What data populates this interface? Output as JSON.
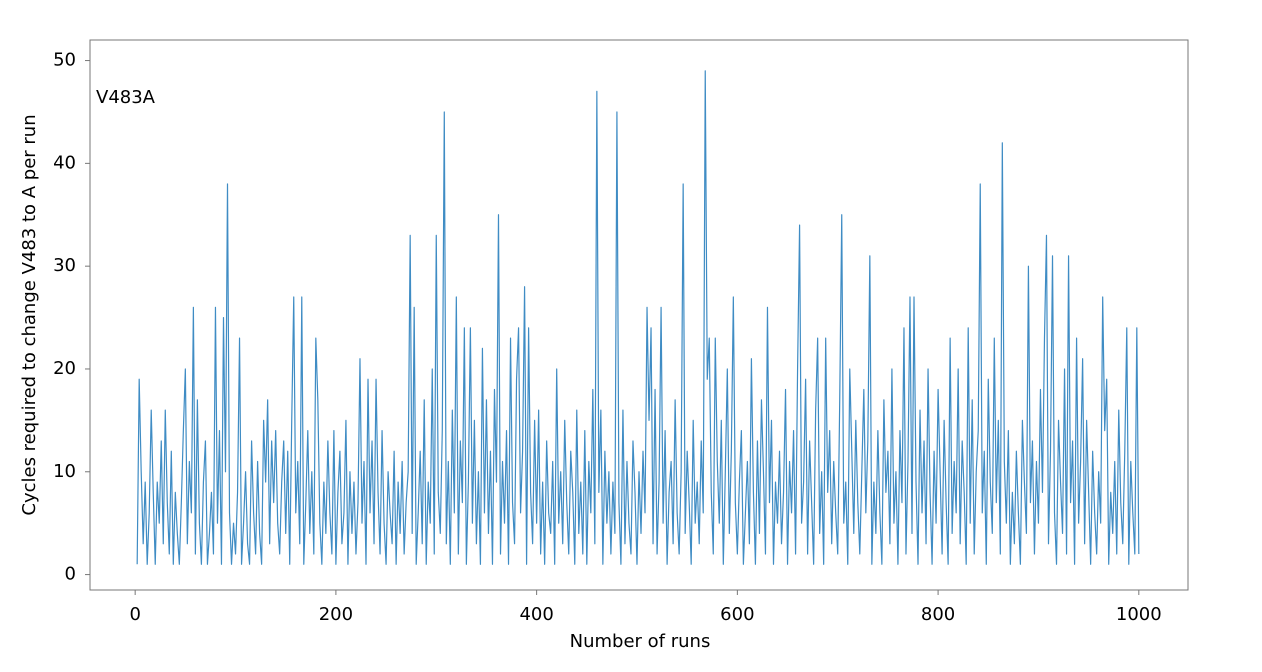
{
  "chart_data": {
    "type": "line",
    "annotation": "V483A",
    "xlabel": "Number of runs",
    "ylabel": "Cycles required to change V483 to A per run",
    "xlim": [
      -45,
      1049
    ],
    "ylim": [
      -1.5,
      52
    ],
    "xticks": [
      0,
      200,
      400,
      600,
      800,
      1000
    ],
    "yticks": [
      0,
      10,
      20,
      30,
      40,
      50
    ],
    "series": [
      {
        "name": "V483A",
        "color": "#3f8cc4",
        "x": [
          2,
          4,
          6,
          8,
          10,
          12,
          14,
          16,
          18,
          20,
          22,
          24,
          26,
          28,
          30,
          32,
          34,
          36,
          38,
          40,
          42,
          44,
          46,
          48,
          50,
          52,
          54,
          56,
          58,
          60,
          62,
          64,
          66,
          68,
          70,
          72,
          74,
          76,
          78,
          80,
          82,
          84,
          86,
          88,
          90,
          92,
          94,
          96,
          98,
          100,
          102,
          104,
          106,
          108,
          110,
          112,
          114,
          116,
          118,
          120,
          122,
          124,
          126,
          128,
          130,
          132,
          134,
          136,
          138,
          140,
          142,
          144,
          146,
          148,
          150,
          152,
          154,
          156,
          158,
          160,
          162,
          164,
          166,
          168,
          170,
          172,
          174,
          176,
          178,
          180,
          182,
          184,
          186,
          188,
          190,
          192,
          194,
          196,
          198,
          200,
          202,
          204,
          206,
          208,
          210,
          212,
          214,
          216,
          218,
          220,
          222,
          224,
          226,
          228,
          230,
          232,
          234,
          236,
          238,
          240,
          242,
          244,
          246,
          248,
          250,
          252,
          254,
          256,
          258,
          260,
          262,
          264,
          266,
          268,
          270,
          272,
          274,
          276,
          278,
          280,
          282,
          284,
          286,
          288,
          290,
          292,
          294,
          296,
          298,
          300,
          302,
          304,
          306,
          308,
          310,
          312,
          314,
          316,
          318,
          320,
          322,
          324,
          326,
          328,
          330,
          332,
          334,
          336,
          338,
          340,
          342,
          344,
          346,
          348,
          350,
          352,
          354,
          356,
          358,
          360,
          362,
          364,
          366,
          368,
          370,
          372,
          374,
          376,
          378,
          380,
          382,
          384,
          386,
          388,
          390,
          392,
          394,
          396,
          398,
          400,
          402,
          404,
          406,
          408,
          410,
          412,
          414,
          416,
          418,
          420,
          422,
          424,
          426,
          428,
          430,
          432,
          434,
          436,
          438,
          440,
          442,
          444,
          446,
          448,
          450,
          452,
          454,
          456,
          458,
          460,
          462,
          464,
          466,
          468,
          470,
          472,
          474,
          476,
          478,
          480,
          482,
          484,
          486,
          488,
          490,
          492,
          494,
          496,
          498,
          500,
          502,
          504,
          506,
          508,
          510,
          512,
          514,
          516,
          518,
          520,
          522,
          524,
          526,
          528,
          530,
          532,
          534,
          536,
          538,
          540,
          542,
          544,
          546,
          548,
          550,
          552,
          554,
          556,
          558,
          560,
          562,
          564,
          566,
          568,
          570,
          572,
          574,
          576,
          578,
          580,
          582,
          584,
          586,
          588,
          590,
          592,
          594,
          596,
          598,
          600,
          602,
          604,
          606,
          608,
          610,
          612,
          614,
          616,
          618,
          620,
          622,
          624,
          626,
          628,
          630,
          632,
          634,
          636,
          638,
          640,
          642,
          644,
          646,
          648,
          650,
          652,
          654,
          656,
          658,
          660,
          662,
          664,
          666,
          668,
          670,
          672,
          674,
          676,
          678,
          680,
          682,
          684,
          686,
          688,
          690,
          692,
          694,
          696,
          698,
          700,
          702,
          704,
          706,
          708,
          710,
          712,
          714,
          716,
          718,
          720,
          722,
          724,
          726,
          728,
          730,
          732,
          734,
          736,
          738,
          740,
          742,
          744,
          746,
          748,
          750,
          752,
          754,
          756,
          758,
          760,
          762,
          764,
          766,
          768,
          770,
          772,
          774,
          776,
          778,
          780,
          782,
          784,
          786,
          788,
          790,
          792,
          794,
          796,
          798,
          800,
          802,
          804,
          806,
          808,
          810,
          812,
          814,
          816,
          818,
          820,
          822,
          824,
          826,
          828,
          830,
          832,
          834,
          836,
          838,
          840,
          842,
          844,
          846,
          848,
          850,
          852,
          854,
          856,
          858,
          860,
          862,
          864,
          866,
          868,
          870,
          872,
          874,
          876,
          878,
          880,
          882,
          884,
          886,
          888,
          890,
          892,
          894,
          896,
          898,
          900,
          902,
          904,
          906,
          908,
          910,
          912,
          914,
          916,
          918,
          920,
          922,
          924,
          926,
          928,
          930,
          932,
          934,
          936,
          938,
          940,
          942,
          944,
          946,
          948,
          950,
          952,
          954,
          956,
          958,
          960,
          962,
          964,
          966,
          968,
          970,
          972,
          974,
          976,
          978,
          980,
          982,
          984,
          986,
          988,
          990,
          992,
          994,
          996,
          998,
          1000
        ],
        "values": [
          1,
          19,
          10,
          3,
          9,
          1,
          6,
          16,
          8,
          1,
          9,
          5,
          13,
          3,
          16,
          7,
          2,
          12,
          1,
          8,
          4,
          1,
          7,
          14,
          20,
          3,
          11,
          6,
          26,
          2,
          17,
          5,
          1,
          9,
          13,
          1,
          4,
          8,
          2,
          26,
          5,
          14,
          1,
          25,
          10,
          38,
          6,
          1,
          5,
          2,
          8,
          23,
          1,
          5,
          10,
          3,
          1,
          13,
          6,
          2,
          11,
          4,
          1,
          15,
          9,
          17,
          3,
          13,
          7,
          14,
          5,
          2,
          9,
          13,
          4,
          12,
          1,
          15,
          27,
          6,
          11,
          3,
          27,
          1,
          7,
          14,
          4,
          10,
          2,
          23,
          17,
          5,
          1,
          9,
          4,
          13,
          6,
          2,
          14,
          1,
          8,
          12,
          3,
          6,
          15,
          1,
          10,
          4,
          9,
          2,
          7,
          21,
          5,
          11,
          1,
          19,
          6,
          13,
          3,
          19,
          8,
          2,
          14,
          5,
          1,
          10,
          6,
          3,
          12,
          1,
          9,
          4,
          11,
          2,
          7,
          10,
          33,
          4,
          26,
          1,
          6,
          12,
          3,
          17,
          1,
          9,
          5,
          20,
          2,
          33,
          8,
          4,
          14,
          45,
          3,
          11,
          1,
          16,
          6,
          27,
          2,
          13,
          7,
          24,
          1,
          9,
          24,
          5,
          15,
          3,
          10,
          1,
          22,
          6,
          17,
          4,
          12,
          1,
          18,
          9,
          35,
          2,
          11,
          5,
          14,
          1,
          23,
          7,
          3,
          19,
          24,
          6,
          12,
          28,
          1,
          24,
          8,
          3,
          15,
          5,
          16,
          2,
          9,
          1,
          13,
          6,
          4,
          11,
          1,
          20,
          5,
          10,
          3,
          15,
          7,
          2,
          12,
          8,
          1,
          16,
          4,
          9,
          2,
          14,
          1,
          11,
          6,
          18,
          3,
          47,
          8,
          16,
          1,
          12,
          5,
          10,
          2,
          9,
          4,
          45,
          7,
          1,
          16,
          3,
          11,
          5,
          2,
          13,
          8,
          1,
          10,
          4,
          12,
          6,
          26,
          15,
          24,
          3,
          18,
          2,
          9,
          26,
          5,
          14,
          1,
          8,
          11,
          3,
          17,
          6,
          2,
          10,
          38,
          4,
          12,
          7,
          1,
          15,
          5,
          9,
          3,
          13,
          6,
          49,
          19,
          23,
          8,
          2,
          23,
          11,
          5,
          15,
          1,
          10,
          20,
          4,
          12,
          27,
          7,
          2,
          9,
          14,
          1,
          6,
          11,
          3,
          21,
          8,
          1,
          13,
          4,
          17,
          10,
          2,
          26,
          7,
          15,
          1,
          9,
          5,
          12,
          3,
          8,
          18,
          1,
          11,
          6,
          14,
          2,
          20,
          34,
          5,
          9,
          19,
          2,
          13,
          7,
          1,
          16,
          23,
          4,
          10,
          1,
          23,
          8,
          14,
          3,
          11,
          6,
          2,
          17,
          35,
          5,
          9,
          1,
          20,
          12,
          4,
          15,
          7,
          2,
          10,
          18,
          6,
          13,
          31,
          1,
          9,
          4,
          14,
          6,
          1,
          17,
          8,
          12,
          3,
          20,
          5,
          10,
          1,
          14,
          7,
          24,
          2,
          11,
          27,
          4,
          27,
          9,
          1,
          16,
          6,
          13,
          3,
          20,
          8,
          1,
          12,
          5,
          18,
          10,
          2,
          15,
          7,
          1,
          23,
          4,
          11,
          6,
          20,
          3,
          13,
          8,
          1,
          24,
          5,
          17,
          2,
          10,
          14,
          38,
          6,
          12,
          1,
          19,
          9,
          4,
          23,
          7,
          15,
          2,
          42,
          11,
          5,
          14,
          1,
          8,
          3,
          12,
          6,
          1,
          15,
          9,
          4,
          30,
          7,
          13,
          2,
          11,
          5,
          18,
          8,
          23,
          33,
          3,
          12,
          31,
          6,
          1,
          15,
          9,
          4,
          20,
          2,
          31,
          7,
          13,
          1,
          23,
          5,
          11,
          21,
          3,
          15,
          8,
          1,
          12,
          6,
          2,
          10,
          5,
          27,
          14,
          19,
          1,
          8,
          4,
          11,
          2,
          16,
          7,
          3,
          12,
          24,
          1,
          11,
          6,
          2,
          24,
          2
        ]
      }
    ]
  }
}
